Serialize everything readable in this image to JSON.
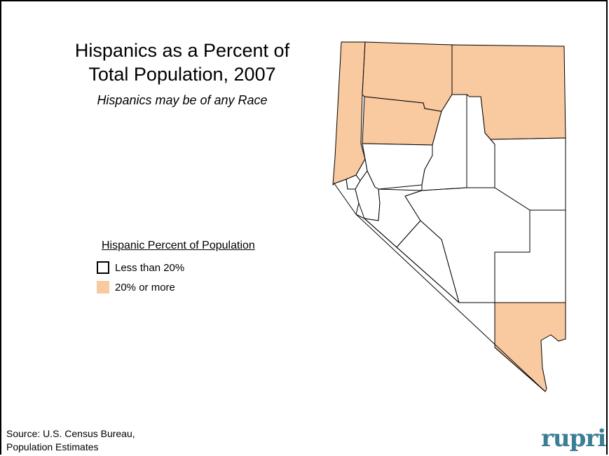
{
  "title_line1": "Hispanics as a Percent of",
  "title_line2": "Total Population, 2007",
  "subtitle": "Hispanics may be of any Race",
  "legend": {
    "title": "Hispanic Percent of Population",
    "items": [
      {
        "label": "Less than 20%",
        "color": "#ffffff"
      },
      {
        "label": "20% or more",
        "color": "#f9c9a0"
      }
    ]
  },
  "source_line1": "Source: U.S. Census Bureau,",
  "source_line2": "Population Estimates",
  "logo_text": "rupri",
  "colors": {
    "highlight": "#f9c9a0",
    "base": "#ffffff",
    "logo": "#3a7e96"
  }
}
